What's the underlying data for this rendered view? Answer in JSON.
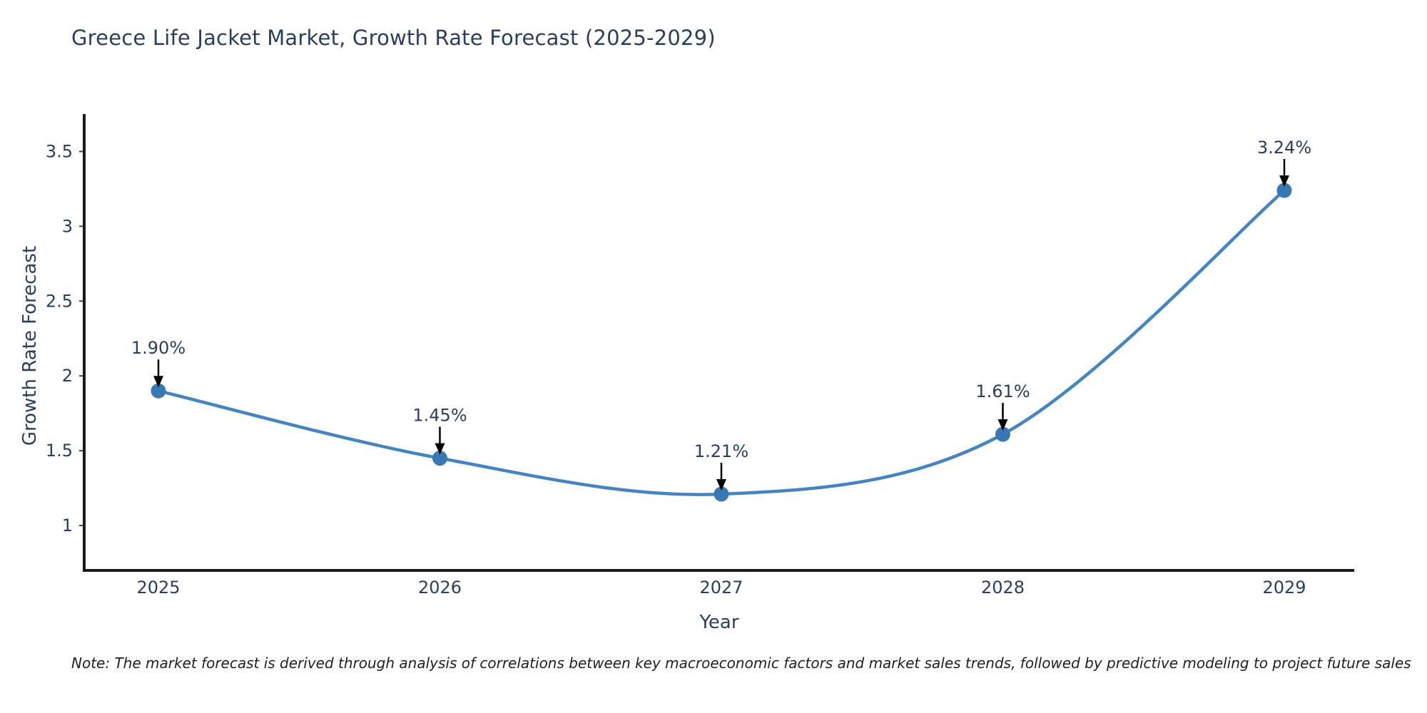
{
  "chart_data": {
    "type": "line",
    "title": "Greece Life Jacket Market, Growth Rate Forecast (2025-2029)",
    "xlabel": "Year",
    "ylabel": "Growth Rate Forecast",
    "x": [
      2025,
      2026,
      2027,
      2028,
      2029
    ],
    "xtick_labels": [
      "2025",
      "2026",
      "2027",
      "2028",
      "2029"
    ],
    "values": [
      1.9,
      1.45,
      1.21,
      1.61,
      3.24
    ],
    "point_labels": [
      "1.90%",
      "1.45%",
      "1.21%",
      "1.61%",
      "3.24%"
    ],
    "yticks": [
      1,
      1.5,
      2,
      2.5,
      3,
      3.5
    ],
    "ytick_labels": [
      "1",
      "1.5",
      "2",
      "2.5",
      "3",
      "3.5"
    ],
    "ylim": [
      0.7,
      3.75
    ],
    "grid": false,
    "legend": "none",
    "line_shape": "spline",
    "annotation_style": "value label with downward arrow at each point",
    "colors": {
      "line": "#4485c1",
      "marker": "#3878b4",
      "axis": "#1a1a1a",
      "text": "#2a3f5f",
      "arrow": "#000000"
    }
  },
  "note": {
    "text": "Note: The market forecast is derived through analysis of correlations between key macroeconomic factors and market sales trends, followed by predictive modeling to project future sales"
  }
}
